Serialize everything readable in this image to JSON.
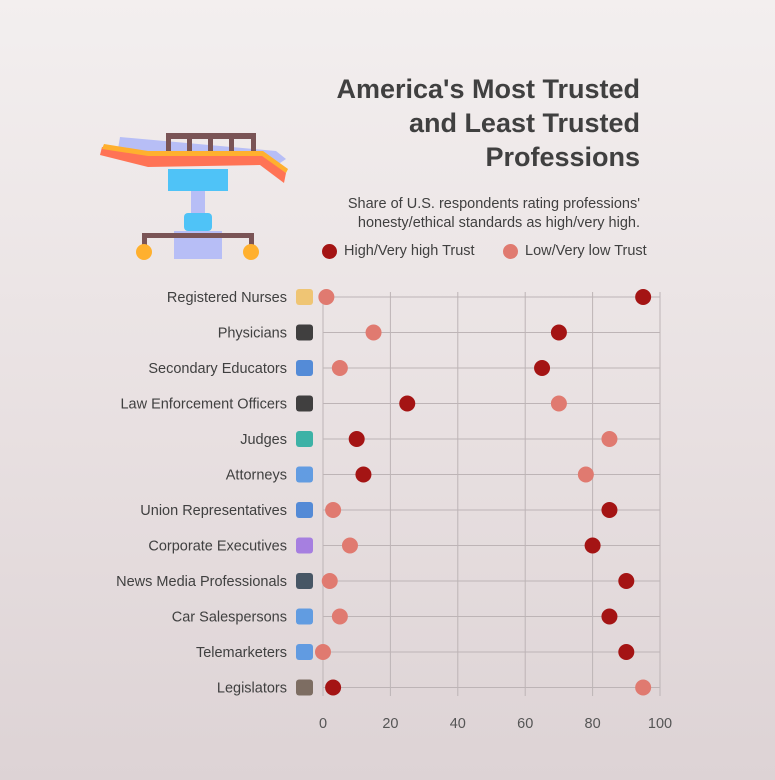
{
  "title": "America's Most Trusted\nand Least Trusted\nProfessions",
  "subtitle": "Share of U.S. respondents rating professions'\nhonesty/ethical standards as high/very high.",
  "legend": {
    "high_label": "High/Very high Trust",
    "low_label": "Low/Very low Trust"
  },
  "colors": {
    "high": "#a41414",
    "low": "#e07a70",
    "grid": "#bdb4b6",
    "text": "#404040"
  },
  "hero_icon": "hospital-bed-icon",
  "chart_data": {
    "type": "scatter",
    "title": "America's Most Trusted and Least Trusted Professions",
    "subtitle": "Share of U.S. respondents rating professions' honesty/ethical standards as high/very high.",
    "xlim": [
      0,
      100
    ],
    "x_ticks": [
      0,
      20,
      40,
      60,
      80,
      100
    ],
    "grid": true,
    "legend_position": "top",
    "categories": [
      "Registered Nurses",
      "Physicians",
      "Secondary Educators",
      "Law Enforcement Officers",
      "Judges",
      "Attorneys",
      "Union Representatives",
      "Corporate Executives",
      "News Media Professionals",
      "Car Salespersons",
      "Telemarketers",
      "Legislators"
    ],
    "category_icons": [
      "nurse-cap-icon",
      "doctor-icon",
      "books-icon",
      "police-officer-icon",
      "gavel-icon",
      "lawyer-icon",
      "union-building-icon",
      "executive-icon",
      "newspaper-icon",
      "salesperson-icon",
      "telemarketer-icon",
      "capitol-icon"
    ],
    "series": [
      {
        "name": "High/Very high Trust",
        "values": [
          95,
          70,
          65,
          25,
          10,
          12,
          85,
          80,
          90,
          85,
          90,
          3
        ]
      },
      {
        "name": "Low/Very low Trust",
        "values": [
          1,
          15,
          5,
          70,
          85,
          78,
          3,
          8,
          2,
          5,
          0,
          95
        ]
      }
    ]
  }
}
